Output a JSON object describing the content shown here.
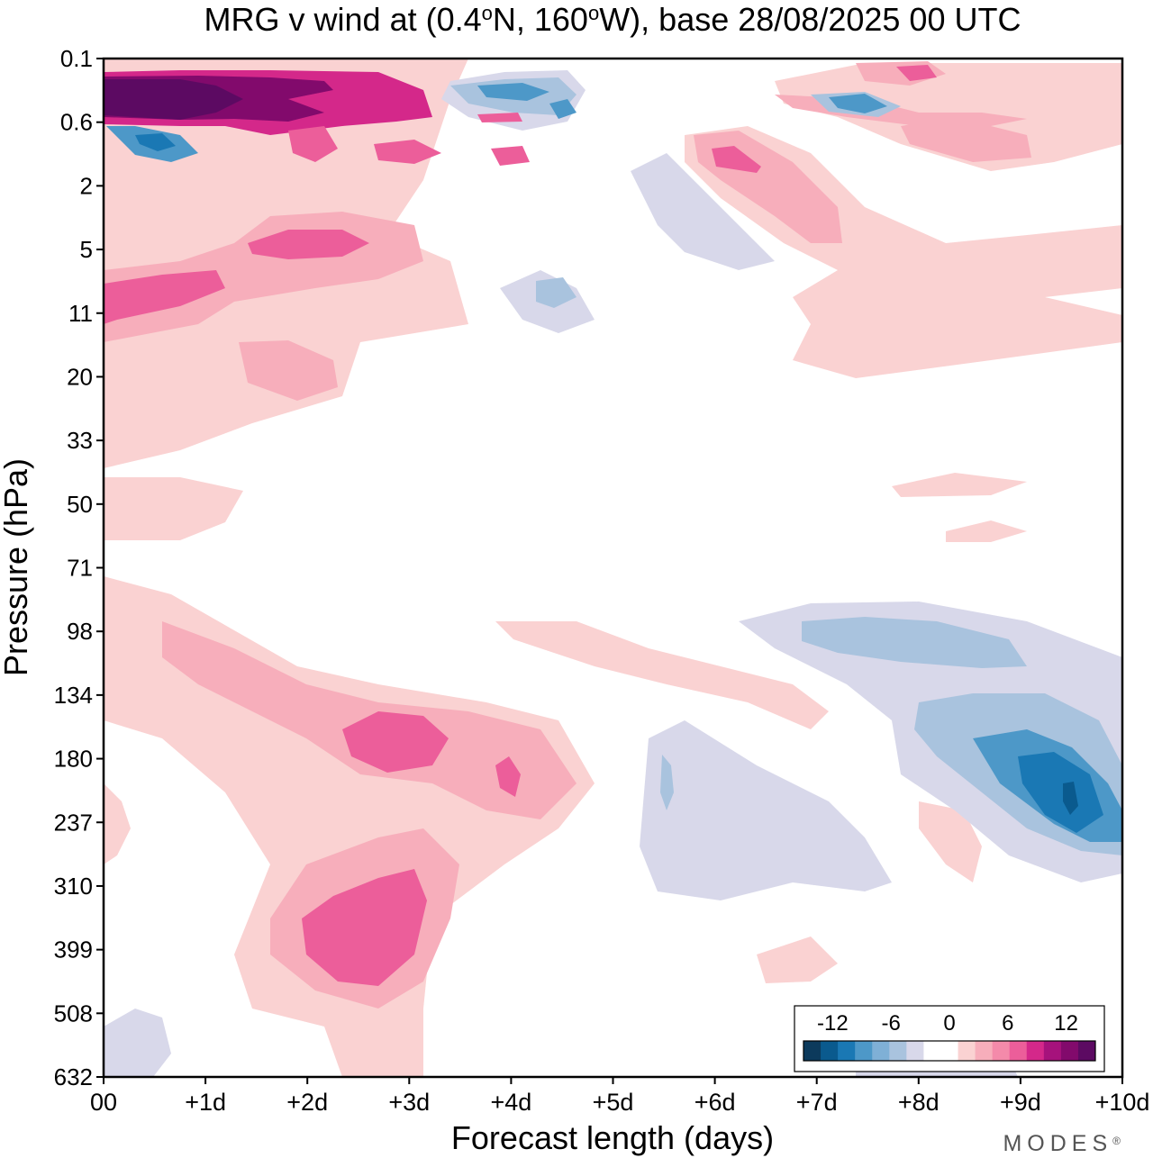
{
  "chart_data": {
    "type": "heatmap",
    "title": "MRG v wind at (0.4°N, 160°W),  base 28/08/2025  00 UTC",
    "title_parts": {
      "prefix": "MRG v wind at (0.4",
      "deg": "o",
      "lat": "N, 160",
      "lon": "W),  base 28/08/2025  00 UTC"
    },
    "xlabel": "Forecast length (days)",
    "ylabel": "Pressure (hPa)",
    "x_tick_labels": [
      "00",
      "+1d",
      "+2d",
      "+3d",
      "+4d",
      "+5d",
      "+6d",
      "+7d",
      "+8d",
      "+9d",
      "+10d"
    ],
    "xlim_days": [
      0,
      10
    ],
    "y_tick_labels": [
      "0.1",
      "0.6",
      "2",
      "5",
      "11",
      "20",
      "33",
      "50",
      "71",
      "98",
      "134",
      "180",
      "237",
      "310",
      "399",
      "508",
      "632"
    ],
    "ylim_hPa": [
      0.1,
      632
    ],
    "colorbar": {
      "labels": [
        "-12",
        "-6",
        "0",
        "6",
        "12"
      ],
      "levels": [
        -15,
        -13.5,
        -12,
        -10.5,
        -9,
        -7.5,
        -6,
        -4.5,
        -3,
        -1.5,
        0,
        1.5,
        3,
        4.5,
        6,
        7.5,
        9,
        10.5,
        12,
        13.5,
        15
      ],
      "colors": [
        "#0c3a5c",
        "#0a5a8e",
        "#1a78b4",
        "#4d98c8",
        "#7fb0d6",
        "#a9c3de",
        "#d8d8ea",
        "#ffffff",
        "#ffffff",
        "#fad2d2",
        "#f7aebb",
        "#f48aaa",
        "#ec5e9a",
        "#d4288a",
        "#a6127c",
        "#820a6c",
        "#5c0a62"
      ]
    },
    "features": [
      {
        "name": "strong positive jet",
        "day_start": 0,
        "day_end": 3.5,
        "pressure": "0.2-0.6",
        "peak": 16
      },
      {
        "name": "negative core near surface top",
        "day": 9.5,
        "pressure": "180-260",
        "peak": -10
      },
      {
        "name": "positive lobe",
        "day": 2.5,
        "pressure": "310-450",
        "peak": 10
      },
      {
        "name": "positive lobe",
        "day": 2.2,
        "pressure": "160-200",
        "peak": 8
      },
      {
        "name": "negative region",
        "day": 8,
        "pressure": "90-110",
        "peak": -6
      }
    ]
  },
  "branding": {
    "logo_text": "MODES",
    "mark": "®"
  },
  "colors": {
    "frame": "#000000",
    "background": "#ffffff"
  }
}
